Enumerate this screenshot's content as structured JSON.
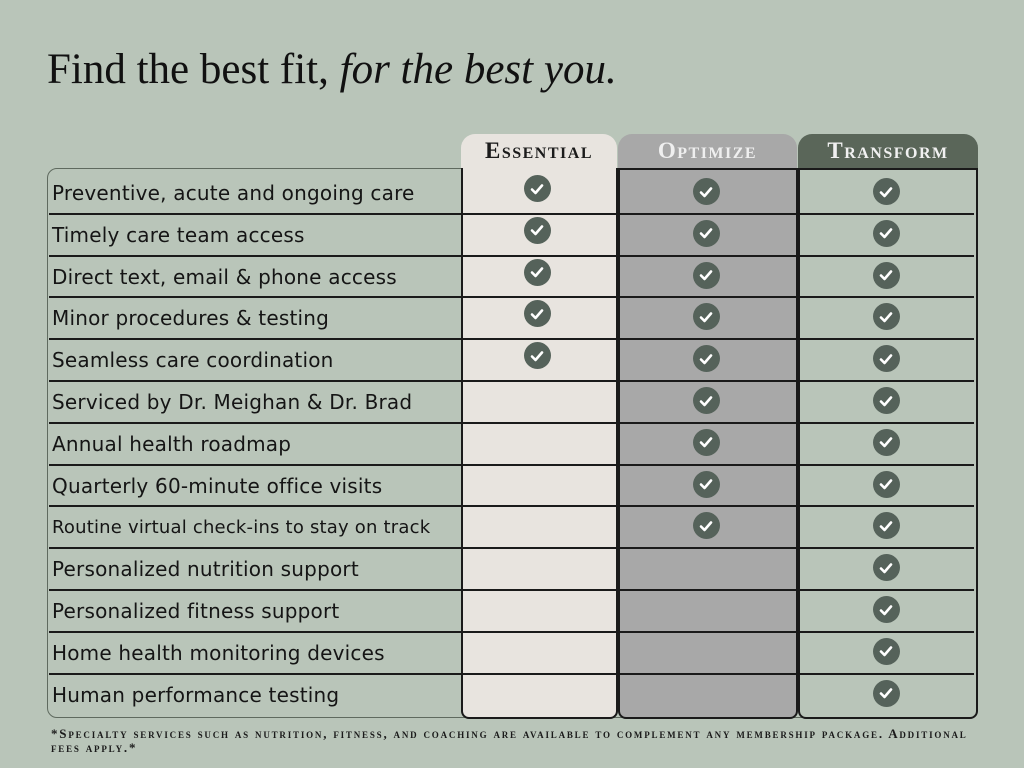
{
  "headline": {
    "plain": "Find the best fit,",
    "italic": "for the best you."
  },
  "columns": [
    {
      "key": "essential",
      "label": "Essential"
    },
    {
      "key": "optimize",
      "label": "Optimize"
    },
    {
      "key": "transform",
      "label": "Transform"
    }
  ],
  "rows": [
    {
      "label": "Preventive, acute and ongoing care",
      "essential": true,
      "optimize": true,
      "transform": true
    },
    {
      "label": "Timely care team access",
      "essential": true,
      "optimize": true,
      "transform": true
    },
    {
      "label": "Direct text, email & phone access",
      "essential": true,
      "optimize": true,
      "transform": true
    },
    {
      "label": "Minor procedures & testing",
      "essential": true,
      "optimize": true,
      "transform": true
    },
    {
      "label": "Seamless care coordination",
      "essential": true,
      "optimize": true,
      "transform": true
    },
    {
      "label": "Serviced by Dr. Meighan & Dr. Brad",
      "essential": false,
      "optimize": true,
      "transform": true
    },
    {
      "label": "Annual health roadmap",
      "essential": false,
      "optimize": true,
      "transform": true
    },
    {
      "label": "Quarterly 60-minute office visits",
      "essential": false,
      "optimize": true,
      "transform": true
    },
    {
      "label": "Routine virtual check-ins to stay on track",
      "essential": false,
      "optimize": true,
      "transform": true
    },
    {
      "label": "Personalized nutrition support",
      "essential": false,
      "optimize": false,
      "transform": true
    },
    {
      "label": "Personalized fitness support",
      "essential": false,
      "optimize": false,
      "transform": true
    },
    {
      "label": "Home health monitoring devices",
      "essential": false,
      "optimize": false,
      "transform": true
    },
    {
      "label": "Human performance testing",
      "essential": false,
      "optimize": false,
      "transform": true
    }
  ],
  "footnote": "*Specialty services such as nutrition, fitness, and coaching are available to complement any membership package. Additional fees apply.*",
  "colors": {
    "background": "#b9c5b9",
    "essential_column": "#e8e4df",
    "optimize_column": "#a8a8a8",
    "transform_tab": "#5a6659",
    "check_icon": "#55625a"
  },
  "icons": {
    "included": "check-circle-icon"
  }
}
